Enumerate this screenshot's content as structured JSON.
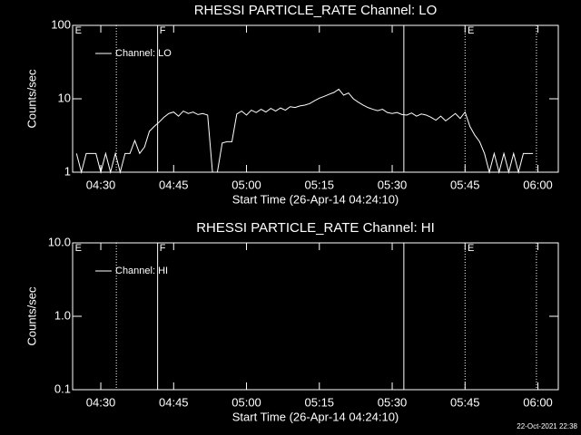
{
  "chart_data": [
    {
      "type": "line",
      "title": "RHESSI PARTICLE_RATE Channel: LO",
      "xlabel": "Start Time (26-Apr-14 04:24:10)",
      "ylabel": "Counts/sec",
      "log_y": true,
      "color_background": "#000000",
      "color_axes": "#ffffff",
      "xlim": [
        264.2,
        364.2
      ],
      "xticks": [
        {
          "value": 270,
          "label": "04:30"
        },
        {
          "value": 285,
          "label": "04:45"
        },
        {
          "value": 300,
          "label": "05:00"
        },
        {
          "value": 315,
          "label": "05:15"
        },
        {
          "value": 330,
          "label": "05:30"
        },
        {
          "value": 345,
          "label": "05:45"
        },
        {
          "value": 360,
          "label": "06:00"
        }
      ],
      "ylim": [
        1,
        100
      ],
      "yticks": [
        1,
        10,
        100
      ],
      "markers": [
        {
          "x": 273.2,
          "style": "dotted"
        },
        {
          "x": 281.7,
          "style": "solid"
        },
        {
          "x": 332.4,
          "style": "solid"
        },
        {
          "x": 345,
          "style": "dotted"
        },
        {
          "x": 359.7,
          "style": "dotted"
        }
      ],
      "flags": [
        {
          "x": 264.7,
          "label": "E"
        },
        {
          "x": 282.1,
          "label": "F"
        },
        {
          "x": 345.5,
          "label": "E"
        }
      ],
      "x": [
        265,
        266,
        267,
        268,
        269,
        270,
        271,
        272,
        273,
        274,
        275,
        276,
        277,
        278,
        279,
        280,
        281,
        282,
        283,
        284,
        285,
        286,
        287,
        288,
        289,
        290,
        291,
        292,
        293,
        294,
        295,
        296,
        297,
        298,
        299,
        300,
        301,
        302,
        303,
        304,
        305,
        306,
        307,
        308,
        309,
        310,
        311,
        312,
        313,
        314,
        315,
        316,
        317,
        318,
        319,
        320,
        321,
        322,
        323,
        324,
        325,
        326,
        327,
        328,
        329,
        330,
        331,
        332,
        333,
        334,
        335,
        336,
        337,
        338,
        339,
        340,
        341,
        342,
        343,
        344,
        345,
        346,
        347,
        348,
        349,
        350,
        351,
        352,
        353,
        354,
        355,
        356,
        357,
        358,
        359
      ],
      "series": [
        {
          "name": "Channel: LO",
          "color": "#ffffff",
          "values": [
            1.8,
            1,
            1.8,
            1.8,
            1.8,
            1,
            1.8,
            1,
            1.8,
            1,
            1.8,
            1.8,
            2.7,
            1.8,
            2.2,
            3.6,
            4.2,
            4.8,
            5.6,
            6.3,
            6.6,
            5.8,
            6.8,
            6.3,
            6.6,
            6.1,
            6.3,
            6.0,
            1,
            1,
            2.5,
            2.6,
            2.6,
            6.2,
            6.8,
            6.0,
            7.0,
            6.5,
            7.2,
            6.6,
            7.4,
            6.8,
            7.5,
            7.0,
            7.8,
            7.6,
            8.0,
            8.2,
            8.6,
            9.4,
            10.2,
            10.8,
            11.5,
            12.2,
            13.5,
            11.2,
            12.0,
            10.0,
            9.0,
            8.2,
            7.6,
            7.2,
            6.9,
            7.2,
            6.5,
            6.3,
            6.5,
            6.1,
            6.0,
            6.4,
            5.8,
            6.2,
            6.0,
            5.6,
            5.1,
            5.8,
            5.0,
            5.6,
            6.3,
            5.4,
            6.6,
            4.2,
            3.2,
            2.6,
            1.8,
            1,
            1.8,
            1,
            1.8,
            1,
            1.8,
            1,
            1.8,
            1.8,
            1.8
          ]
        }
      ]
    },
    {
      "type": "line",
      "title": "RHESSI PARTICLE_RATE Channel: HI",
      "xlabel": "Start Time (26-Apr-14 04:24:10)",
      "ylabel": "Counts/sec",
      "log_y": true,
      "color_background": "#000000",
      "color_axes": "#ffffff",
      "xlim": [
        264.2,
        364.2
      ],
      "xticks": [
        {
          "value": 270,
          "label": "04:30"
        },
        {
          "value": 285,
          "label": "04:45"
        },
        {
          "value": 300,
          "label": "05:00"
        },
        {
          "value": 315,
          "label": "05:15"
        },
        {
          "value": 330,
          "label": "05:30"
        },
        {
          "value": 345,
          "label": "05:45"
        },
        {
          "value": 360,
          "label": "06:00"
        }
      ],
      "ylim": [
        0.1,
        10
      ],
      "yticks": [
        0.1,
        {
          "value": 1,
          "label": "1.0"
        },
        {
          "value": 10,
          "label": "10.0"
        }
      ],
      "markers": [
        {
          "x": 273.2,
          "style": "dotted"
        },
        {
          "x": 281.7,
          "style": "solid"
        },
        {
          "x": 332.4,
          "style": "solid"
        },
        {
          "x": 345,
          "style": "dotted"
        },
        {
          "x": 359.7,
          "style": "dotted"
        }
      ],
      "flags": [
        {
          "x": 264.7,
          "label": "E"
        },
        {
          "x": 282.1,
          "label": "F"
        },
        {
          "x": 345.5,
          "label": "E"
        }
      ],
      "x": [],
      "series": [
        {
          "name": "Channel: HI",
          "color": "#ffffff",
          "values": []
        }
      ]
    }
  ],
  "footer": {
    "timestamp": "22-Oct-2021 22:38"
  }
}
